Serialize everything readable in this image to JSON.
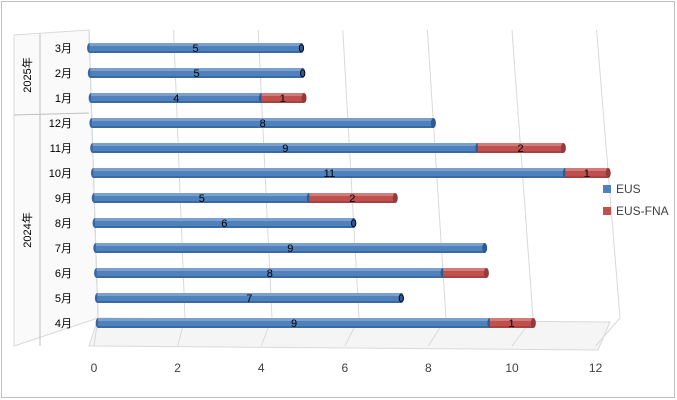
{
  "chart_data": {
    "type": "bar",
    "orientation": "horizontal",
    "stacked": true,
    "style": "3d-cylinder",
    "grid": true,
    "legend_position": "right",
    "year_groups": [
      {
        "label": "2025年",
        "months": [
          "3月",
          "2月",
          "1月"
        ]
      },
      {
        "label": "2024年",
        "months": [
          "12月",
          "11月",
          "10月",
          "9月",
          "8月",
          "7月",
          "6月",
          "5月",
          "4月"
        ]
      }
    ],
    "categories": [
      "3月",
      "2月",
      "1月",
      "12月",
      "11月",
      "10月",
      "9月",
      "8月",
      "7月",
      "6月",
      "5月",
      "4月"
    ],
    "series": [
      {
        "name": "EUS",
        "color": "#4F81BD",
        "values": [
          5,
          5,
          4,
          8,
          9,
          11,
          5,
          6,
          9,
          8,
          7,
          9
        ]
      },
      {
        "name": "EUS-FNA",
        "color": "#C0504D",
        "values": [
          0,
          0,
          1,
          0,
          2,
          1,
          2,
          0,
          0,
          1,
          0,
          1
        ]
      }
    ],
    "data_labels": {
      "EUS": [
        "5",
        "5",
        "4",
        "8",
        "9",
        "11",
        "5",
        "6",
        "9",
        "8",
        "7",
        "9"
      ],
      "EUS-FNA": [
        "0",
        "0",
        "1",
        "",
        "2",
        "1",
        "2",
        "0",
        "",
        "",
        "0",
        "1"
      ]
    },
    "x_ticks": [
      "0",
      "2",
      "4",
      "6",
      "8",
      "10",
      "12"
    ],
    "xlim": [
      0,
      12
    ]
  }
}
